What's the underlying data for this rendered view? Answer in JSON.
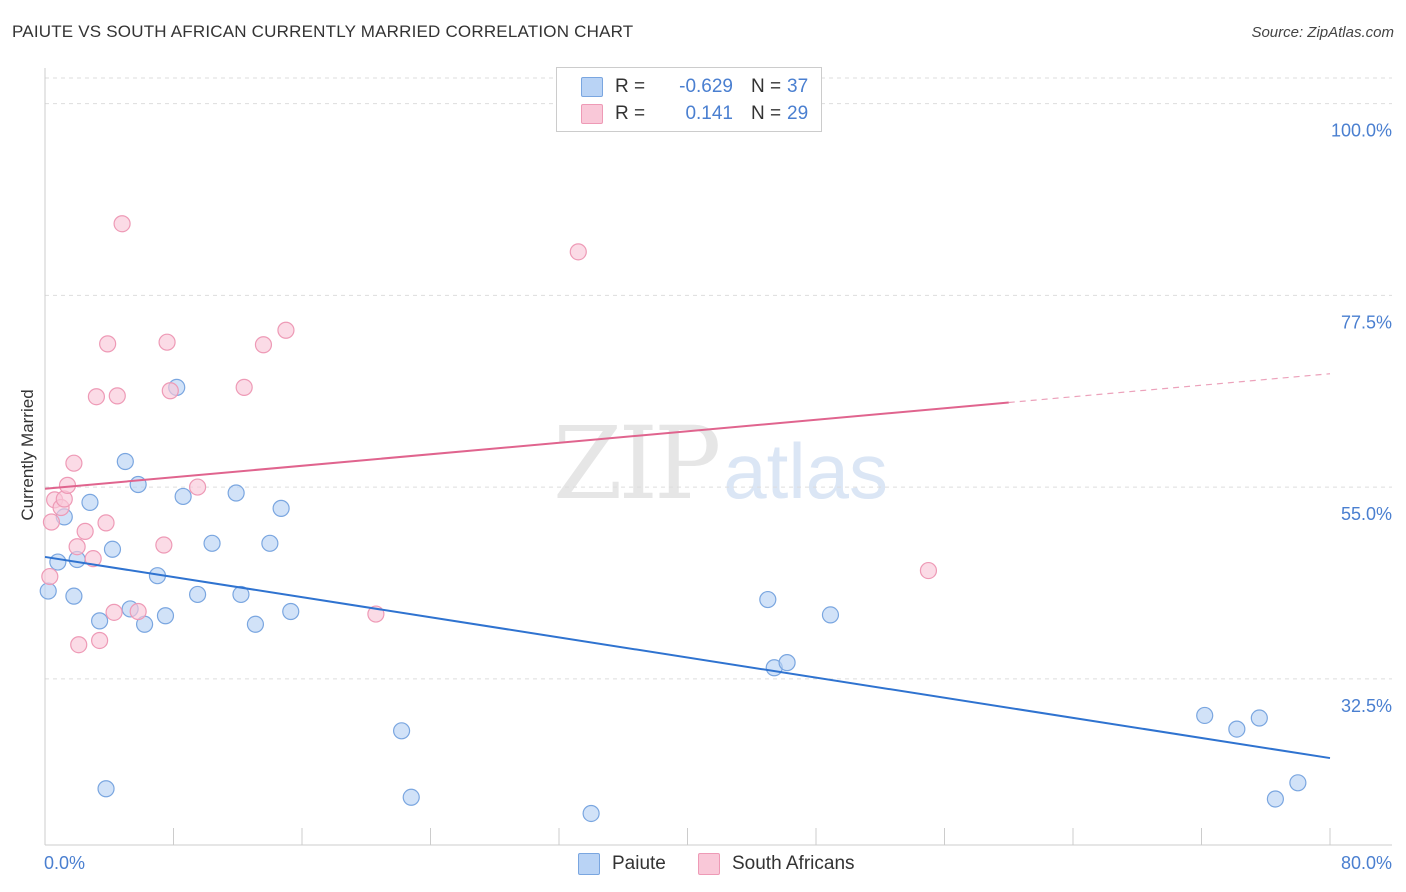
{
  "header": {
    "title": "PAIUTE VS SOUTH AFRICAN CURRENTLY MARRIED CORRELATION CHART",
    "source": "Source: ZipAtlas.com"
  },
  "watermark": {
    "zip": "ZIP",
    "atlas": "atlas"
  },
  "legend": {
    "paiute": {
      "r_label": "R =",
      "r_value": "-0.629",
      "n_label": "N =",
      "n_value": "37"
    },
    "south_africans": {
      "r_label": "R =",
      "r_value": "0.141",
      "n_label": "N =",
      "n_value": "29"
    }
  },
  "bottom_legend": {
    "paiute": "Paiute",
    "south_africans": "South Africans"
  },
  "colors": {
    "paiute_fill": "#b9d3f5",
    "paiute_stroke": "#7aa6e0",
    "paiute_line": "#2f73d0",
    "sa_fill": "#f9c8d8",
    "sa_stroke": "#ee9ab6",
    "sa_line": "#e0648e",
    "tick_text": "#4a7fd0",
    "grid": "#dddddd"
  },
  "chart_data": {
    "type": "scatter",
    "title": "PAIUTE VS SOUTH AFRICAN CURRENTLY MARRIED CORRELATION CHART",
    "xlabel": "",
    "ylabel": "Currently Married",
    "xlim": [
      0,
      80
    ],
    "ylim": [
      13,
      103
    ],
    "x_tick_labels": [
      "0.0%",
      "80.0%"
    ],
    "y_ticks": [
      32.5,
      55.0,
      77.5,
      100.0
    ],
    "y_tick_labels": [
      "32.5%",
      "55.0%",
      "77.5%",
      "100.0%"
    ],
    "series": [
      {
        "name": "Paiute",
        "points": [
          [
            0.2,
            42.8
          ],
          [
            0.8,
            46.2
          ],
          [
            1.2,
            51.5
          ],
          [
            1.8,
            42.2
          ],
          [
            2.0,
            46.5
          ],
          [
            2.8,
            53.2
          ],
          [
            3.4,
            39.3
          ],
          [
            3.8,
            19.6
          ],
          [
            4.2,
            47.7
          ],
          [
            5.0,
            58.0
          ],
          [
            5.3,
            40.7
          ],
          [
            5.8,
            55.3
          ],
          [
            6.2,
            38.9
          ],
          [
            7.0,
            44.6
          ],
          [
            7.5,
            39.9
          ],
          [
            8.2,
            66.7
          ],
          [
            8.6,
            53.9
          ],
          [
            9.5,
            42.4
          ],
          [
            10.4,
            48.4
          ],
          [
            11.9,
            54.3
          ],
          [
            12.2,
            42.4
          ],
          [
            13.1,
            38.9
          ],
          [
            14.0,
            48.4
          ],
          [
            14.7,
            52.5
          ],
          [
            15.3,
            40.4
          ],
          [
            22.2,
            26.4
          ],
          [
            22.8,
            18.6
          ],
          [
            34.0,
            16.7
          ],
          [
            45.0,
            41.8
          ],
          [
            45.4,
            33.8
          ],
          [
            46.2,
            34.4
          ],
          [
            48.9,
            40.0
          ],
          [
            72.2,
            28.2
          ],
          [
            74.2,
            26.6
          ],
          [
            75.6,
            27.9
          ],
          [
            76.6,
            18.4
          ],
          [
            78.0,
            20.3
          ]
        ],
        "trend": {
          "x": [
            0,
            80
          ],
          "y": [
            46.8,
            23.2
          ],
          "dashed_from": null
        }
      },
      {
        "name": "South Africans",
        "points": [
          [
            0.3,
            44.5
          ],
          [
            0.4,
            50.9
          ],
          [
            0.6,
            53.5
          ],
          [
            1.0,
            52.6
          ],
          [
            1.2,
            53.6
          ],
          [
            1.4,
            55.2
          ],
          [
            1.8,
            57.8
          ],
          [
            2.0,
            48.0
          ],
          [
            2.1,
            36.5
          ],
          [
            2.5,
            49.8
          ],
          [
            3.0,
            46.6
          ],
          [
            3.2,
            65.6
          ],
          [
            3.4,
            37.0
          ],
          [
            3.8,
            50.8
          ],
          [
            3.9,
            71.8
          ],
          [
            4.3,
            40.3
          ],
          [
            4.5,
            65.7
          ],
          [
            4.8,
            85.9
          ],
          [
            5.8,
            40.4
          ],
          [
            7.4,
            48.2
          ],
          [
            7.6,
            72.0
          ],
          [
            7.8,
            66.3
          ],
          [
            9.5,
            55.0
          ],
          [
            12.4,
            66.7
          ],
          [
            13.6,
            71.7
          ],
          [
            15.0,
            73.4
          ],
          [
            20.6,
            40.1
          ],
          [
            33.2,
            82.6
          ],
          [
            55.0,
            45.2
          ]
        ],
        "trend": {
          "x": [
            0,
            80
          ],
          "y": [
            54.8,
            68.3
          ],
          "dashed_from": 60
        }
      }
    ]
  }
}
